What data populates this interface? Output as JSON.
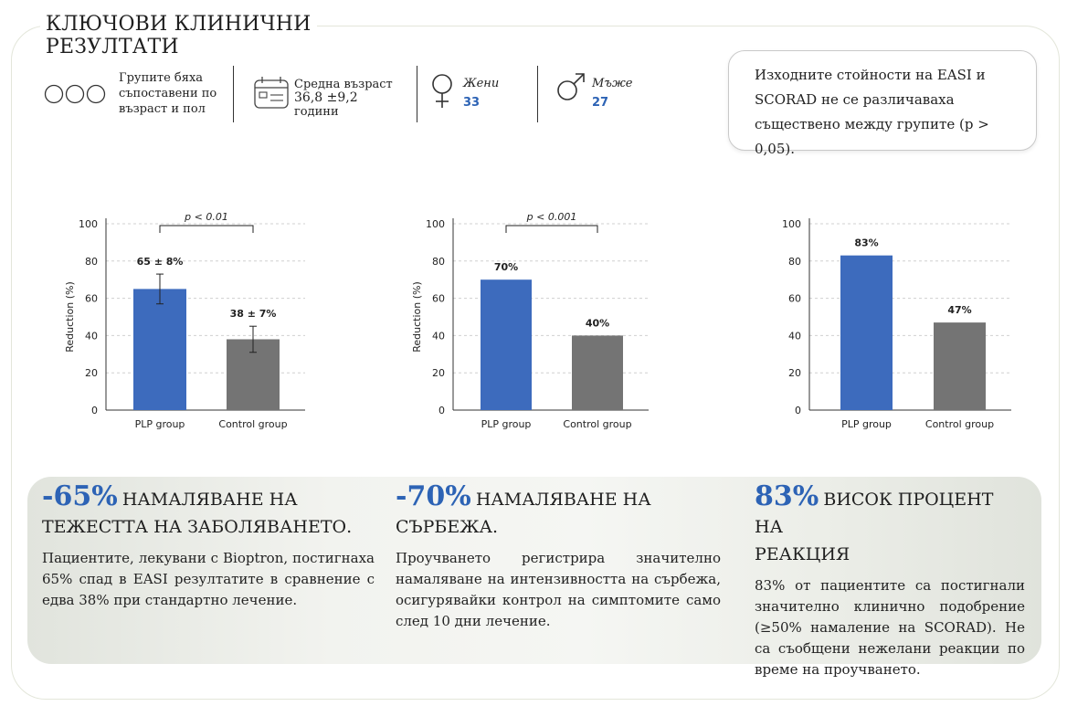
{
  "title": [
    "КЛЮЧОВИ КЛИНИЧНИ",
    "РЕЗУЛТАТИ"
  ],
  "stats": {
    "matched": {
      "icon": "three-circles-icon",
      "lines": [
        "Групите бяха",
        "съпоставени по",
        "възраст и пол"
      ]
    },
    "age": {
      "icon": "calendar-icon",
      "label": "Средна възраст",
      "value": "36,8 ±9,2",
      "unit": "години"
    },
    "women": {
      "icon": "female-symbol-icon",
      "label": "Жени",
      "value": "33"
    },
    "men": {
      "icon": "male-symbol-icon",
      "label": "Мъже",
      "value": "27"
    }
  },
  "baseline_note": [
    "Изходните стойности на EASI и",
    "SCORAD не се различаваха",
    "съществено между групите (p >",
    "0,05)."
  ],
  "colors": {
    "plp": "#3d6bbd",
    "control": "#747474",
    "accent": "#2d63b5"
  },
  "chart_data": [
    {
      "type": "bar",
      "categories": [
        "PLP group",
        "Control group"
      ],
      "values": [
        65,
        38
      ],
      "errors": [
        8,
        7
      ],
      "data_labels": [
        "65 ± 8%",
        "38 ± 7%"
      ],
      "ylabel": "Reduction (%)",
      "ylim": [
        0,
        100
      ],
      "yticks": [
        "0",
        "20",
        "40",
        "60",
        "80",
        "100"
      ],
      "significance": "p < 0.01",
      "grid": true
    },
    {
      "type": "bar",
      "categories": [
        "PLP group",
        "Control group"
      ],
      "values": [
        70,
        40
      ],
      "data_labels": [
        "70%",
        "40%"
      ],
      "ylabel": "Reduction (%)",
      "ylim": [
        0,
        100
      ],
      "yticks": [
        "0",
        "20",
        "40",
        "60",
        "80",
        "100"
      ],
      "significance": "p < 0.001",
      "grid": true
    },
    {
      "type": "bar",
      "categories": [
        "PLP group",
        "Control group"
      ],
      "values": [
        83,
        47
      ],
      "data_labels": [
        "83%",
        "47%"
      ],
      "ylabel": "",
      "ylim": [
        0,
        100
      ],
      "yticks": [
        "0",
        "20",
        "40",
        "60",
        "80",
        "100"
      ],
      "grid": true
    }
  ],
  "results": [
    {
      "big": "-65%",
      "head1": "НАМАЛЯВАНЕ НА",
      "head2": "ТЕЖЕСТТА НА ЗАБОЛЯВАНЕТО.",
      "body": "Пациентите, лекувани с Bioptron, постигнаха 65% спад в EASI резултатите в сравнение с едва 38% при стандартно лечение."
    },
    {
      "big": "-70%",
      "head1": "НАМАЛЯВАНЕ НА",
      "head2": "СЪРБЕЖА.",
      "body": "Проучването регистрира значително намаляване на интензивността на сърбежа, осигурявайки контрол на симптомите само след 10 дни лечение."
    },
    {
      "big": "83%",
      "head1": "ВИСОК ПРОЦЕНТ НА",
      "head2": "РЕАКЦИЯ",
      "body": "83% от пациентите са постигнали значително клинично подобрение (≥50% намаление на SCORAD). Не са съобщени нежелани реакции по време на проучването."
    }
  ]
}
